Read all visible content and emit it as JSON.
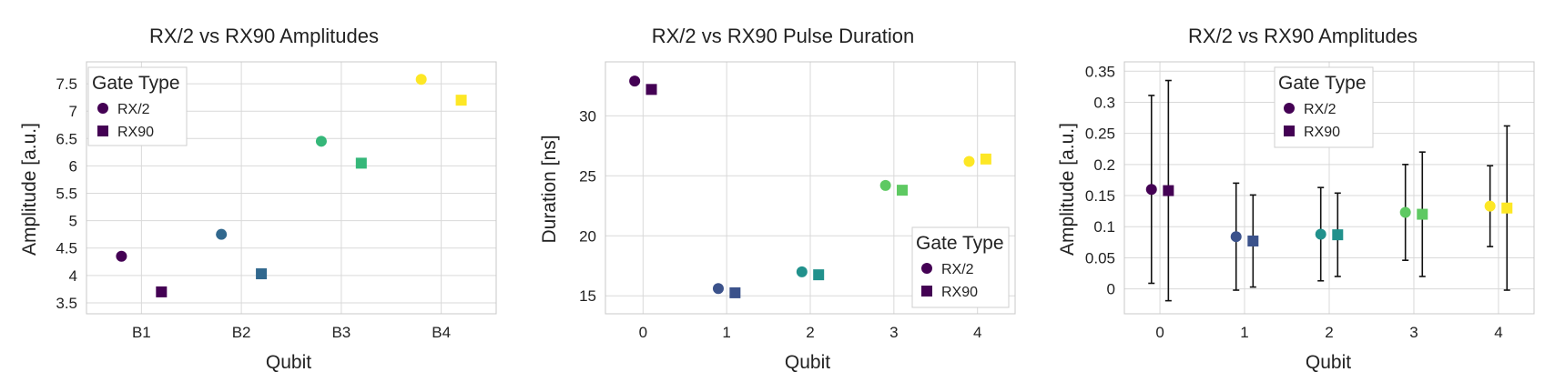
{
  "chart_data": [
    {
      "type": "scatter",
      "title": "RX/2 vs RX90 Amplitudes",
      "xlabel": "Qubit",
      "ylabel": "Amplitude [a.u.]",
      "x_axis": "categorical",
      "categories": [
        "B1",
        "B2",
        "B3",
        "B4"
      ],
      "ylim": [
        3.3,
        7.9
      ],
      "yticks": [
        3.5,
        4,
        4.5,
        5,
        5.5,
        6,
        6.5,
        7,
        7.5
      ],
      "ytick_labels": [
        "3.5",
        "4",
        "4.5",
        "5",
        "5.5",
        "6",
        "6.5",
        "7",
        "7.5"
      ],
      "grid": true,
      "legend": {
        "title": "Gate Type",
        "position": "top-left",
        "entries": [
          "RX/2",
          "RX90"
        ]
      },
      "series": [
        {
          "name": "RX/2",
          "marker": "circle",
          "values": [
            4.35,
            4.75,
            6.45,
            7.58
          ],
          "colors": [
            "#440154",
            "#31688e",
            "#35b779",
            "#fde725"
          ]
        },
        {
          "name": "RX90",
          "marker": "square",
          "values": [
            3.7,
            4.03,
            6.05,
            7.2
          ],
          "colors": [
            "#440154",
            "#31688e",
            "#35b779",
            "#fde725"
          ]
        }
      ]
    },
    {
      "type": "scatter",
      "title": "RX/2 vs RX90 Pulse Duration",
      "xlabel": "Qubit",
      "ylabel": "Duration [ns]",
      "x": [
        0,
        1,
        2,
        3,
        4
      ],
      "xlim": [
        -0.45,
        4.45
      ],
      "xticks": [
        0,
        1,
        2,
        3,
        4
      ],
      "ylim": [
        13.5,
        34.5
      ],
      "yticks": [
        15,
        20,
        25,
        30
      ],
      "ytick_labels": [
        "15",
        "20",
        "25",
        "30"
      ],
      "grid": true,
      "legend": {
        "title": "Gate Type",
        "position": "bottom-right",
        "entries": [
          "RX/2",
          "RX90"
        ]
      },
      "series": [
        {
          "name": "RX/2",
          "marker": "circle",
          "values": [
            32.9,
            15.6,
            17.0,
            24.2,
            26.2
          ],
          "colors": [
            "#440154",
            "#3b528b",
            "#21918c",
            "#5ec962",
            "#fde725"
          ]
        },
        {
          "name": "RX90",
          "marker": "square",
          "values": [
            32.2,
            15.25,
            16.75,
            23.8,
            26.4
          ],
          "colors": [
            "#440154",
            "#3b528b",
            "#21918c",
            "#5ec962",
            "#fde725"
          ]
        }
      ]
    },
    {
      "type": "scatter",
      "title": "RX/2 vs RX90 Amplitudes",
      "xlabel": "Qubit",
      "ylabel": "Amplitude [a.u.]",
      "x": [
        0,
        1,
        2,
        3,
        4
      ],
      "xlim": [
        -0.42,
        4.42
      ],
      "xticks": [
        0,
        1,
        2,
        3,
        4
      ],
      "ylim": [
        -0.04,
        0.365
      ],
      "yticks": [
        0,
        0.05,
        0.1,
        0.15,
        0.2,
        0.25,
        0.3,
        0.35
      ],
      "ytick_labels": [
        "0",
        "0.05",
        "0.1",
        "0.15",
        "0.2",
        "0.25",
        "0.3",
        "0.35"
      ],
      "grid": true,
      "error_bars": true,
      "legend": {
        "title": "Gate Type",
        "position": "top-center",
        "entries": [
          "RX/2",
          "RX90"
        ]
      },
      "series": [
        {
          "name": "RX/2",
          "marker": "circle",
          "values": [
            0.16,
            0.084,
            0.088,
            0.123,
            0.133
          ],
          "errors": [
            0.151,
            0.086,
            0.075,
            0.077,
            0.065
          ],
          "colors": [
            "#440154",
            "#3b528b",
            "#21918c",
            "#5ec962",
            "#fde725"
          ]
        },
        {
          "name": "RX90",
          "marker": "square",
          "values": [
            0.158,
            0.077,
            0.087,
            0.12,
            0.13
          ],
          "errors": [
            0.177,
            0.074,
            0.067,
            0.1,
            0.132
          ],
          "colors": [
            "#440154",
            "#3b528b",
            "#21918c",
            "#5ec962",
            "#fde725"
          ]
        }
      ]
    }
  ]
}
